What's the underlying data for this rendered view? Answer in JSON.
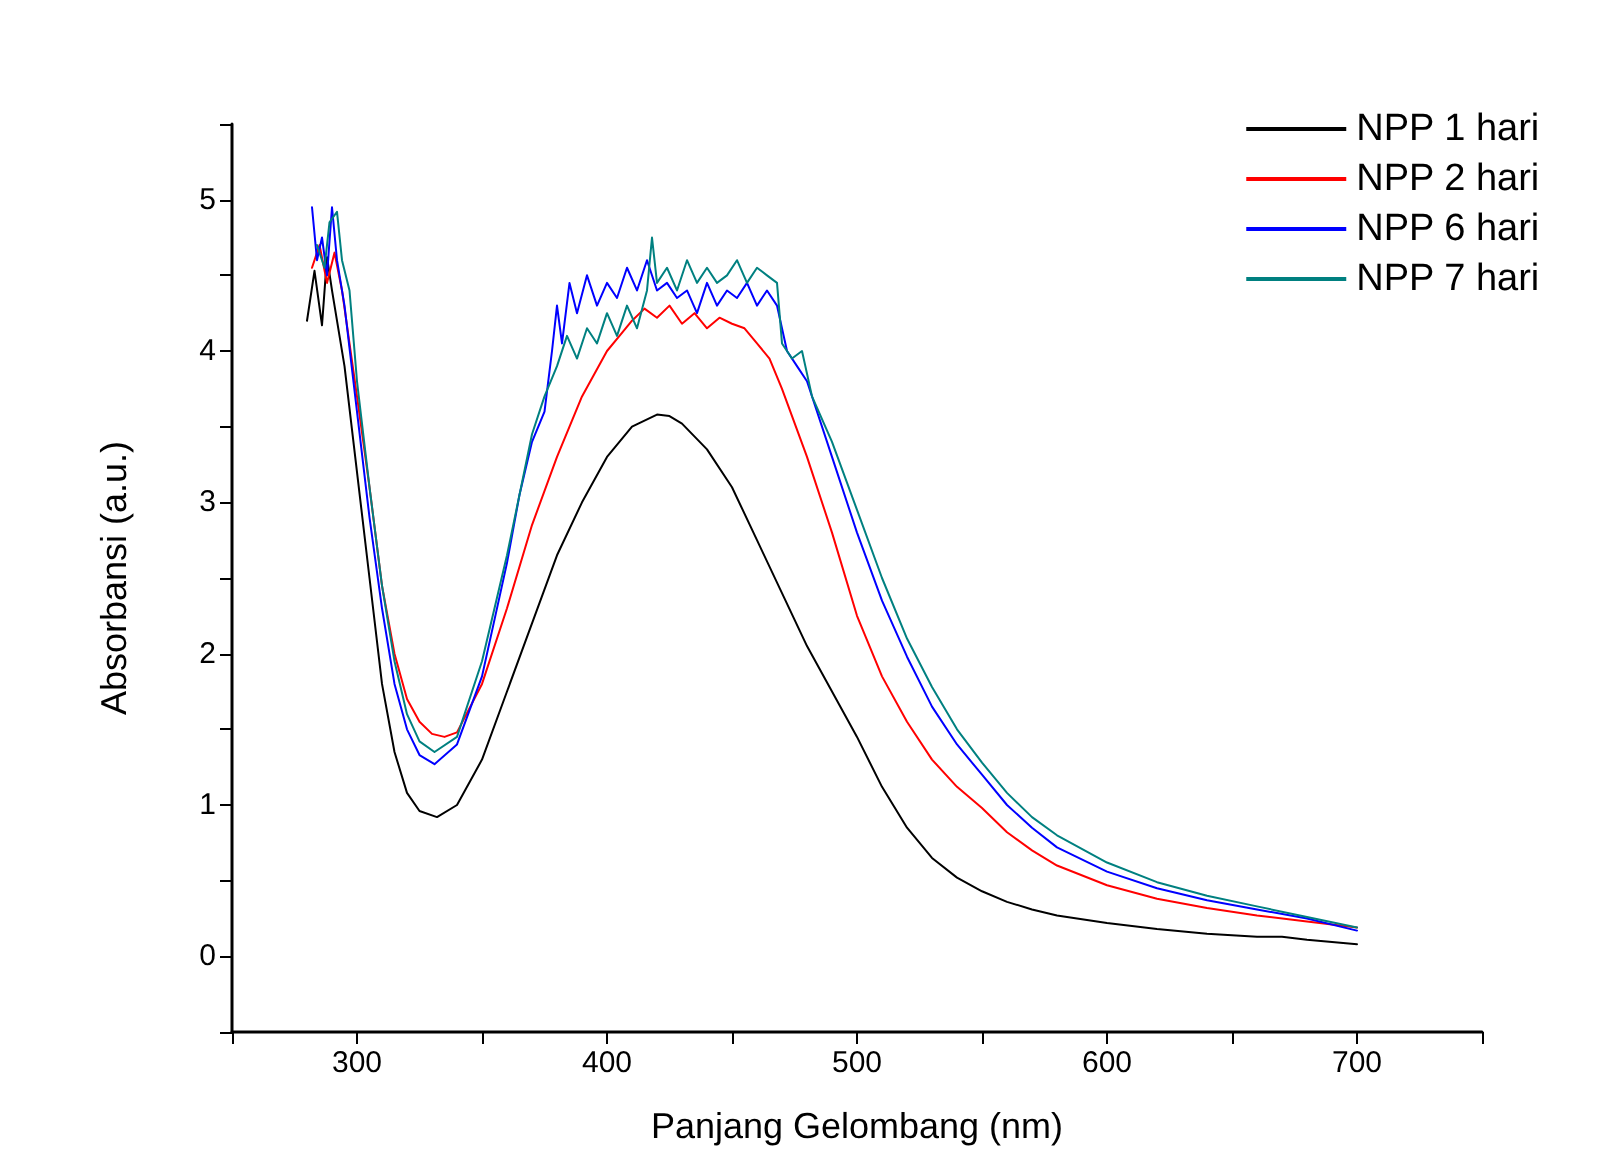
{
  "chart_data": {
    "type": "line",
    "xlabel": "Panjang Gelombang (nm)",
    "ylabel": "Absorbansi (a.u.)",
    "xlim": [
      250,
      750
    ],
    "ylim": [
      -0.5,
      5.5
    ],
    "xticks": [
      {
        "value": 250,
        "label": null
      },
      300,
      {
        "value": 350,
        "label": null
      },
      400,
      {
        "value": 450,
        "label": null
      },
      500,
      {
        "value": 550,
        "label": null
      },
      600,
      {
        "value": 650,
        "label": null
      },
      700,
      {
        "value": 750,
        "label": null
      }
    ],
    "yticks": [
      {
        "value": -0.5,
        "label": null
      },
      0,
      {
        "value": 0.5,
        "label": null
      },
      1,
      {
        "value": 1.5,
        "label": null
      },
      2,
      {
        "value": 2.5,
        "label": null
      },
      3,
      {
        "value": 3.5,
        "label": null
      },
      4,
      {
        "value": 4.5,
        "label": null
      },
      5,
      {
        "value": 5.5,
        "label": null
      }
    ],
    "grid": false,
    "legend": "top right",
    "marker": "none",
    "line_style": "solid",
    "series": [
      {
        "name": "NPP 1 hari",
        "color": "#000000",
        "x": [
          280,
          283,
          286,
          288,
          290,
          295,
          300,
          305,
          310,
          315,
          320,
          325,
          332,
          340,
          350,
          360,
          370,
          380,
          390,
          400,
          410,
          420,
          425,
          430,
          440,
          450,
          460,
          470,
          480,
          490,
          500,
          510,
          520,
          530,
          540,
          550,
          560,
          570,
          580,
          600,
          620,
          640,
          660,
          670,
          680,
          700
        ],
        "values": [
          4.2,
          4.53,
          4.17,
          4.62,
          4.4,
          3.9,
          3.2,
          2.5,
          1.8,
          1.35,
          1.08,
          0.96,
          0.92,
          1.0,
          1.3,
          1.75,
          2.2,
          2.65,
          3.0,
          3.3,
          3.5,
          3.58,
          3.57,
          3.52,
          3.35,
          3.1,
          2.75,
          2.4,
          2.05,
          1.75,
          1.45,
          1.12,
          0.85,
          0.65,
          0.52,
          0.43,
          0.36,
          0.31,
          0.27,
          0.22,
          0.18,
          0.15,
          0.13,
          0.13,
          0.11,
          0.08
        ]
      },
      {
        "name": "NPP 2 hari",
        "color": "#ff0000",
        "x": [
          282,
          285,
          288,
          291,
          294,
          300,
          305,
          310,
          315,
          320,
          325,
          330,
          335,
          340,
          350,
          360,
          370,
          380,
          390,
          395,
          400,
          405,
          410,
          415,
          420,
          425,
          430,
          435,
          440,
          445,
          450,
          455,
          460,
          465,
          470,
          480,
          490,
          500,
          510,
          520,
          530,
          540,
          550,
          560,
          570,
          580,
          600,
          620,
          640,
          660,
          680,
          700
        ],
        "values": [
          4.55,
          4.7,
          4.45,
          4.65,
          4.4,
          3.7,
          3.1,
          2.45,
          2.0,
          1.7,
          1.55,
          1.47,
          1.45,
          1.48,
          1.8,
          2.3,
          2.85,
          3.3,
          3.7,
          3.85,
          4.0,
          4.1,
          4.2,
          4.28,
          4.22,
          4.3,
          4.18,
          4.25,
          4.15,
          4.22,
          4.18,
          4.15,
          4.05,
          3.95,
          3.75,
          3.3,
          2.8,
          2.25,
          1.85,
          1.55,
          1.3,
          1.12,
          0.98,
          0.82,
          0.7,
          0.6,
          0.47,
          0.38,
          0.32,
          0.27,
          0.23,
          0.19
        ]
      },
      {
        "name": "NPP 6 hari",
        "color": "#0000ff",
        "x": [
          282,
          284,
          286,
          288,
          290,
          292,
          295,
          300,
          305,
          310,
          315,
          320,
          325,
          331,
          340,
          350,
          360,
          365,
          370,
          375,
          378,
          380,
          382,
          385,
          388,
          392,
          396,
          400,
          404,
          408,
          412,
          416,
          420,
          424,
          428,
          432,
          436,
          440,
          444,
          448,
          452,
          456,
          460,
          464,
          468,
          472,
          476,
          480,
          490,
          500,
          510,
          520,
          530,
          540,
          550,
          560,
          570,
          580,
          600,
          620,
          640,
          660,
          680,
          700
        ],
        "values": [
          4.95,
          4.6,
          4.75,
          4.5,
          4.95,
          4.6,
          4.3,
          3.6,
          2.9,
          2.3,
          1.8,
          1.5,
          1.33,
          1.27,
          1.4,
          1.85,
          2.6,
          3.05,
          3.4,
          3.6,
          4.0,
          4.3,
          4.05,
          4.45,
          4.25,
          4.5,
          4.3,
          4.45,
          4.35,
          4.55,
          4.4,
          4.6,
          4.4,
          4.45,
          4.35,
          4.4,
          4.25,
          4.45,
          4.3,
          4.4,
          4.35,
          4.45,
          4.3,
          4.4,
          4.3,
          4.0,
          3.9,
          3.8,
          3.3,
          2.8,
          2.35,
          1.98,
          1.65,
          1.4,
          1.2,
          1.0,
          0.85,
          0.72,
          0.56,
          0.45,
          0.37,
          0.31,
          0.25,
          0.17
        ]
      },
      {
        "name": "NPP 7 hari",
        "color": "#008080",
        "x": [
          284,
          287,
          289,
          292,
          294,
          297,
          300,
          305,
          310,
          315,
          320,
          325,
          331,
          340,
          350,
          360,
          365,
          370,
          375,
          380,
          384,
          388,
          392,
          396,
          400,
          404,
          408,
          412,
          416,
          418,
          420,
          424,
          428,
          432,
          436,
          440,
          444,
          448,
          452,
          456,
          460,
          464,
          468,
          470,
          474,
          478,
          482,
          490,
          500,
          510,
          520,
          530,
          540,
          550,
          560,
          570,
          580,
          600,
          620,
          640,
          660,
          680,
          700
        ],
        "values": [
          4.7,
          4.55,
          4.85,
          4.92,
          4.6,
          4.4,
          3.8,
          3.1,
          2.45,
          1.95,
          1.6,
          1.42,
          1.35,
          1.45,
          1.95,
          2.65,
          3.05,
          3.45,
          3.7,
          3.9,
          4.1,
          3.95,
          4.15,
          4.05,
          4.25,
          4.1,
          4.3,
          4.15,
          4.4,
          4.75,
          4.45,
          4.55,
          4.4,
          4.6,
          4.45,
          4.55,
          4.45,
          4.5,
          4.6,
          4.45,
          4.55,
          4.5,
          4.45,
          4.05,
          3.95,
          4.0,
          3.7,
          3.4,
          2.95,
          2.5,
          2.1,
          1.78,
          1.5,
          1.28,
          1.08,
          0.92,
          0.8,
          0.62,
          0.49,
          0.4,
          0.33,
          0.26,
          0.19
        ]
      }
    ]
  }
}
